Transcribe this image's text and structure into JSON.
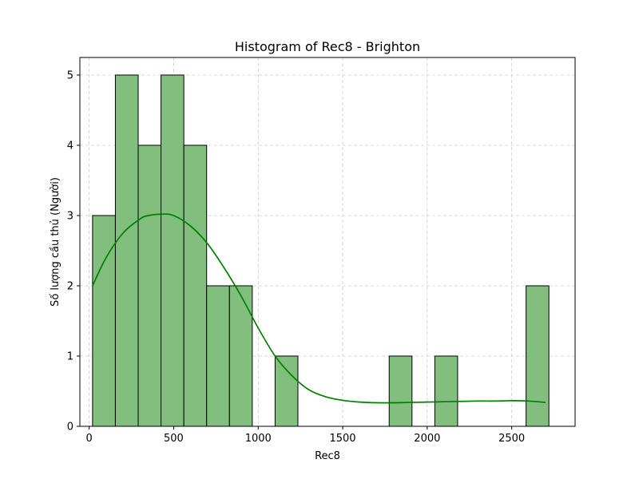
{
  "chart_data": {
    "type": "bar",
    "title": "Histogram of Rec8 - Brighton",
    "xlabel": "Rec8",
    "ylabel": "Số lượng cầu thủ (Người)",
    "xlim": [
      -55,
      2875
    ],
    "ylim": [
      0,
      5.25
    ],
    "x_ticks": [
      0,
      500,
      1000,
      1500,
      2000,
      2500
    ],
    "y_ticks": [
      0,
      1,
      2,
      3,
      4,
      5
    ],
    "grid": true,
    "bin_edges": [
      20,
      155,
      290,
      425,
      560,
      695,
      830,
      965,
      1100,
      1235,
      1370,
      1505,
      1640,
      1775,
      1910,
      2045,
      2180,
      2315,
      2450,
      2585,
      2720
    ],
    "counts": [
      3,
      5,
      4,
      5,
      4,
      2,
      2,
      0,
      1,
      0,
      0,
      0,
      0,
      1,
      0,
      1,
      0,
      0,
      0,
      2
    ],
    "kde": {
      "x": [
        20,
        100,
        200,
        300,
        350,
        430,
        500,
        600,
        700,
        800,
        900,
        1000,
        1100,
        1200,
        1300,
        1400,
        1500,
        1600,
        1700,
        1800,
        1900,
        2000,
        2100,
        2200,
        2300,
        2400,
        2500,
        2600,
        2700
      ],
      "y": [
        2.0,
        2.4,
        2.75,
        2.95,
        3.0,
        3.02,
        3.0,
        2.85,
        2.6,
        2.25,
        1.85,
        1.4,
        1.0,
        0.72,
        0.52,
        0.42,
        0.37,
        0.345,
        0.335,
        0.335,
        0.34,
        0.345,
        0.35,
        0.355,
        0.36,
        0.36,
        0.365,
        0.36,
        0.34
      ]
    },
    "colors": {
      "bar_fill": "#82bf7e",
      "bar_edge": "#000000",
      "kde_line": "#008000",
      "grid": "#cccccc"
    }
  }
}
